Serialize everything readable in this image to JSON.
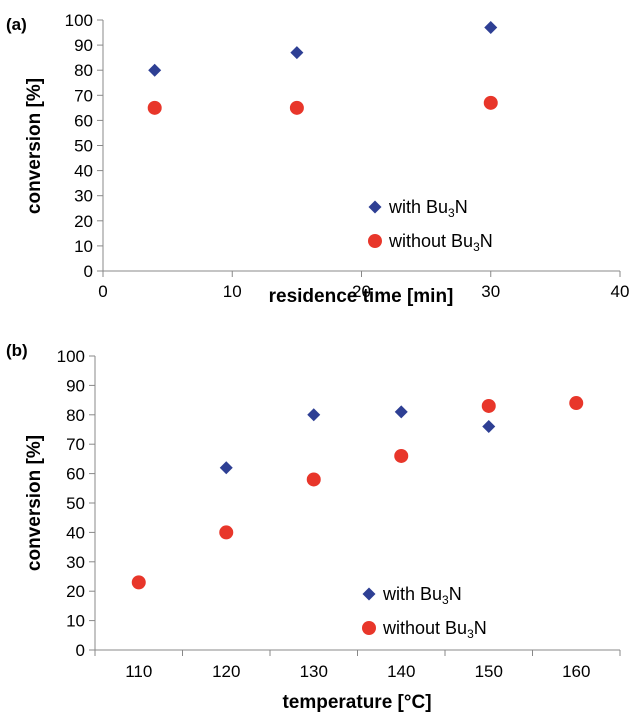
{
  "chart_data": [
    {
      "type": "scatter",
      "panel_label": "(a)",
      "xlabel": "residence time [min]",
      "ylabel": "conversion [%]",
      "xlim": [
        0,
        40
      ],
      "ylim": [
        0,
        100
      ],
      "x_ticks": [
        "0",
        "10",
        "20",
        "30",
        "40"
      ],
      "y_ticks": [
        "0",
        "10",
        "20",
        "30",
        "40",
        "50",
        "60",
        "70",
        "80",
        "90",
        "100"
      ],
      "grid": false,
      "legend_position": "bottom-right",
      "series": [
        {
          "name": "with Bu3N",
          "legend_base": "with Bu",
          "legend_sub": "3",
          "legend_tail": "N",
          "marker": "diamond",
          "color": "#2E3F94",
          "x": [
            4,
            15,
            30
          ],
          "y": [
            80,
            87,
            97
          ]
        },
        {
          "name": "without Bu3N",
          "legend_base": "without Bu",
          "legend_sub": "3",
          "legend_tail": "N",
          "marker": "circle",
          "color": "#E8362A",
          "x": [
            4,
            15,
            30
          ],
          "y": [
            65,
            65,
            67
          ]
        }
      ]
    },
    {
      "type": "scatter",
      "panel_label": "(b)",
      "xlabel": "temperature [°C]",
      "ylabel": "conversion [%]",
      "categories": [
        "110",
        "120",
        "130",
        "140",
        "150",
        "160"
      ],
      "ylim": [
        0,
        100
      ],
      "y_ticks": [
        "0",
        "10",
        "20",
        "30",
        "40",
        "50",
        "60",
        "70",
        "80",
        "90",
        "100"
      ],
      "grid": false,
      "legend_position": "bottom-right",
      "series": [
        {
          "name": "with Bu3N",
          "legend_base": "with Bu",
          "legend_sub": "3",
          "legend_tail": "N",
          "marker": "diamond",
          "color": "#2E3F94",
          "x": [
            120,
            130,
            140,
            150
          ],
          "y": [
            62,
            80,
            81,
            76
          ]
        },
        {
          "name": "without Bu3N",
          "legend_base": "without Bu",
          "legend_sub": "3",
          "legend_tail": "N",
          "marker": "circle",
          "color": "#E8362A",
          "x": [
            110,
            120,
            130,
            140,
            150,
            160
          ],
          "y": [
            23,
            40,
            58,
            66,
            83,
            84
          ]
        }
      ]
    }
  ]
}
